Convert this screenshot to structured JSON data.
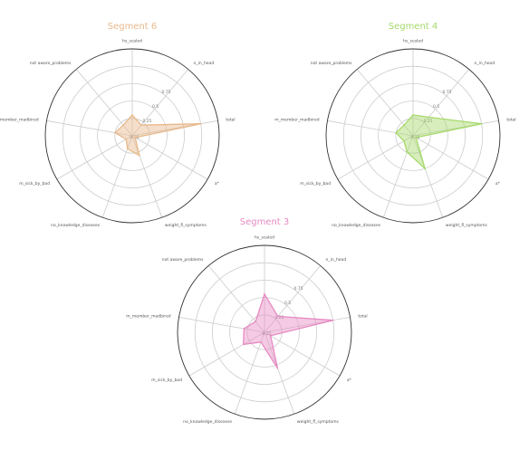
{
  "chart_data": [
    {
      "type": "radar",
      "title": "Segment 6",
      "color": "#e8b98b",
      "fill_opacity": 0.45,
      "axes": [
        "hs_scaled",
        "n_in_head",
        "total",
        "a*",
        "weight_fl_symptoms",
        "no_knowledge_diseases",
        "m_sick_by_bad",
        "m_member_madbired",
        "not aware_problems"
      ],
      "values": [
        0.3,
        0.2,
        1.0,
        0.05,
        0.3,
        0.2,
        0.1,
        0.25,
        0.2
      ],
      "rlim": [
        0,
        1.25
      ],
      "rticks": [
        0.25,
        0.5,
        0.75,
        1.0
      ],
      "rtick_labels": [
        "0.25",
        "0.5",
        "0.75",
        ""
      ],
      "extra_tick_labels": [
        "-0.25"
      ]
    },
    {
      "type": "radar",
      "title": "Segment 4",
      "color": "#a6d96a",
      "fill_opacity": 0.45,
      "axes": [
        "hs_scaled",
        "n_in_head",
        "total",
        "a*",
        "weight_fl_symptoms",
        "no_knowledge_diseases",
        "m_sick_by_bad",
        "m_member_madbired",
        "not aware_problems"
      ],
      "values": [
        0.3,
        0.35,
        1.0,
        0.05,
        0.5,
        0.25,
        0.15,
        0.25,
        0.2
      ],
      "rlim": [
        0,
        1.25
      ],
      "rticks": [
        0.25,
        0.5,
        0.75,
        1.0
      ],
      "rtick_labels": [
        "0.25",
        "0.5",
        "0.75",
        ""
      ],
      "extra_tick_labels": [
        "-0.25"
      ]
    },
    {
      "type": "radar",
      "title": "Segment 3",
      "color": "#e78ac3",
      "fill_opacity": 0.45,
      "axes": [
        "hs_scaled",
        "n_in_head",
        "total",
        "a*",
        "weight_fl_symptoms",
        "no_knowledge_diseases",
        "m_sick_by_bad",
        "m_member_madbired",
        "not aware_problems"
      ],
      "values": [
        0.55,
        0.3,
        1.0,
        0.1,
        0.55,
        0.15,
        0.35,
        0.3,
        0.2
      ],
      "rlim": [
        0,
        1.25
      ],
      "rticks": [
        0.25,
        0.5,
        0.75,
        1.0
      ],
      "rtick_labels": [
        "0.25",
        "0.5",
        "0.75",
        ""
      ],
      "extra_tick_labels": [
        "-0.25"
      ]
    }
  ]
}
